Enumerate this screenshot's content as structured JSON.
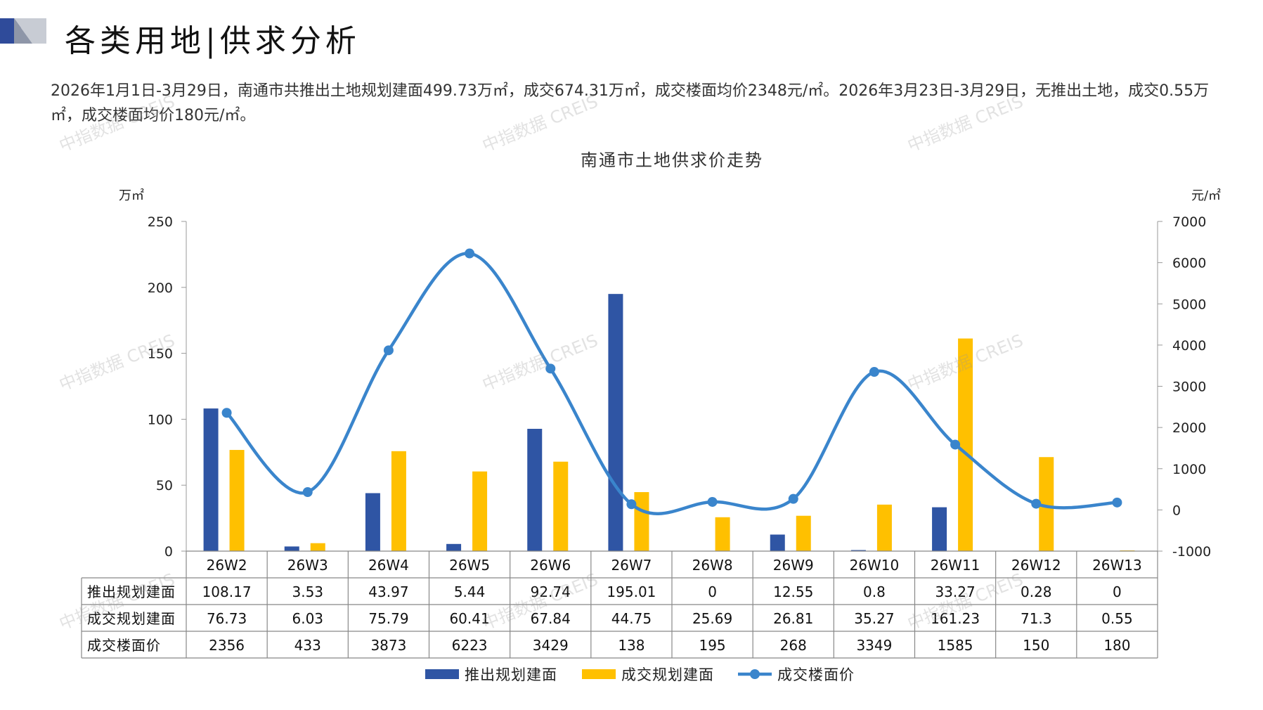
{
  "header": {
    "title": "各类用地|供求分析",
    "summary": "2026年1月1日-3月29日，南通市共推出土地规划建面499.73万㎡，成交674.31万㎡，成交楼面均价2348元/㎡。2026年3月23日-3月29日，无推出土地，成交0.55万㎡，成交楼面均价180元/㎡。"
  },
  "watermark": "中指数据 CREIS",
  "colors": {
    "supply": "#2F55A4",
    "deal": "#FFC000",
    "price": "#3A85CC",
    "corner_dark": "#2F4B9A",
    "corner_grey": "#C8CCD4"
  },
  "chart_data": {
    "type": "bar",
    "title": "南通市土地供求价走势",
    "ylabel_left": "万㎡",
    "ylabel_right": "元/㎡",
    "ylim_left": [
      0,
      250
    ],
    "yticks_left": [
      0,
      50,
      100,
      150,
      200,
      250
    ],
    "ylim_right": [
      -1000,
      7000
    ],
    "yticks_right": [
      -1000,
      0,
      1000,
      2000,
      3000,
      4000,
      5000,
      6000,
      7000
    ],
    "legend_position": "bottom",
    "categories": [
      "26W2",
      "26W3",
      "26W4",
      "26W5",
      "26W6",
      "26W7",
      "26W8",
      "26W9",
      "26W10",
      "26W11",
      "26W12",
      "26W13"
    ],
    "series": [
      {
        "name": "推出规划建面",
        "type": "bar",
        "axis": "left",
        "values": [
          108.17,
          3.53,
          43.97,
          5.44,
          92.74,
          195.01,
          0,
          12.55,
          0.8,
          33.27,
          0.28,
          0
        ],
        "labels": [
          "108.17",
          "3.53",
          "43.97",
          "5.44",
          "92.74",
          "195.01",
          "0",
          "12.55",
          "0.8",
          "33.27",
          "0.28",
          "0"
        ]
      },
      {
        "name": "成交规划建面",
        "type": "bar",
        "axis": "left",
        "values": [
          76.73,
          6.03,
          75.79,
          60.41,
          67.84,
          44.75,
          25.69,
          26.81,
          35.27,
          161.23,
          71.3,
          0.55
        ],
        "labels": [
          "76.73",
          "6.03",
          "75.79",
          "60.41",
          "67.84",
          "44.75",
          "25.69",
          "26.81",
          "35.27",
          "161.23",
          "71.3",
          "0.55"
        ]
      },
      {
        "name": "成交楼面价",
        "type": "line",
        "axis": "right",
        "smooth": true,
        "values": [
          2356,
          433,
          3873,
          6223,
          3429,
          138,
          195,
          268,
          3349,
          1585,
          150,
          180
        ],
        "labels": [
          "2356",
          "433",
          "3873",
          "6223",
          "3429",
          "138",
          "195",
          "268",
          "3349",
          "1585",
          "150",
          "180"
        ]
      }
    ]
  }
}
